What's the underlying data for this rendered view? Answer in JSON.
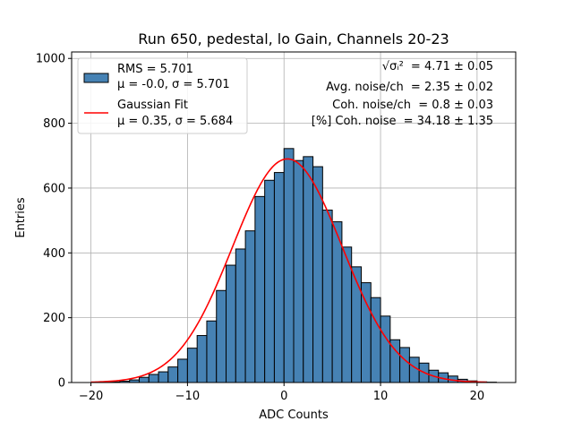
{
  "chart_data": {
    "type": "bar",
    "title": "Run 650, pedestal, lo Gain, Channels 20-23",
    "xlabel": "ADC Counts",
    "ylabel": "Entries",
    "xlim": [
      -22,
      24
    ],
    "ylim": [
      0,
      1020
    ],
    "xticks": [
      -20,
      -10,
      0,
      10,
      20
    ],
    "yticks": [
      0,
      200,
      400,
      600,
      800,
      1000
    ],
    "grid": true,
    "bin_width": 1,
    "bin_left_edges": [
      -20,
      -19,
      -18,
      -17,
      -16,
      -15,
      -14,
      -13,
      -12,
      -11,
      -10,
      -9,
      -8,
      -7,
      -6,
      -5,
      -4,
      -3,
      -2,
      -1,
      0,
      1,
      2,
      3,
      4,
      5,
      6,
      7,
      8,
      9,
      10,
      11,
      12,
      13,
      14,
      15,
      16,
      17,
      18,
      19,
      20,
      21
    ],
    "counts": [
      0,
      1,
      2,
      4,
      8,
      16,
      25,
      33,
      48,
      72,
      106,
      145,
      190,
      284,
      362,
      412,
      468,
      574,
      624,
      648,
      722,
      685,
      697,
      666,
      532,
      496,
      418,
      357,
      308,
      262,
      205,
      132,
      108,
      78,
      60,
      38,
      30,
      20,
      10,
      5,
      2,
      1
    ],
    "fit": {
      "mu": 0.35,
      "sigma": 5.684,
      "amplitude": 690,
      "x_range": [
        -20,
        21
      ]
    },
    "series": [
      {
        "name": "RMS = 5.701",
        "detail": "μ = -0.0, σ = 5.701",
        "color": "#4682b4",
        "edge_color": "#000000",
        "kind": "histogram"
      },
      {
        "name": "Gaussian Fit",
        "detail": "μ = 0.35, σ = 5.684",
        "color": "#ff0000",
        "kind": "line"
      }
    ],
    "legend_position": "top-left",
    "annotations": [
      {
        "label": "√σᵢ²",
        "value": "= 4.71 ± 0.05"
      },
      {
        "label": "Avg. noise/ch",
        "value": "= 2.35 ± 0.02"
      },
      {
        "label": "Coh. noise/ch",
        "value": "= 0.8 ± 0.03"
      },
      {
        "label": "[%] Coh. noise",
        "value": "= 34.18 ± 1.35"
      }
    ]
  }
}
